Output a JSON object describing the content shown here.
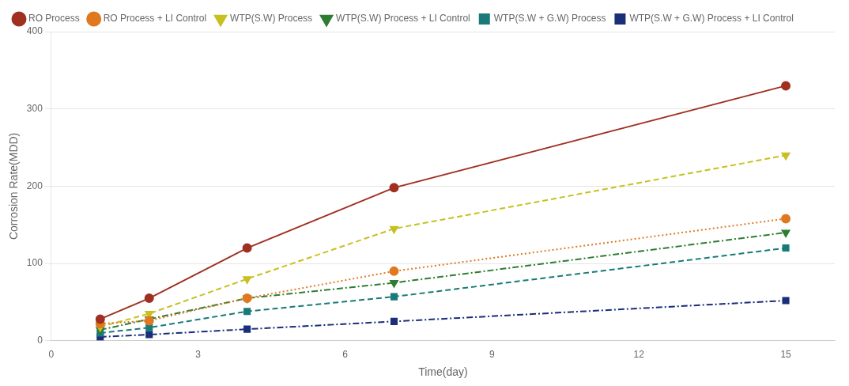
{
  "chart_data": {
    "type": "line",
    "x_label": "Time(day)",
    "y_label": "Corrosion Rate(MDD)",
    "x": [
      1,
      2,
      4,
      7,
      15
    ],
    "series": [
      {
        "name": "RO Process",
        "color": "#a03020",
        "marker": "circle",
        "line_style": "solid",
        "values": [
          28,
          55,
          120,
          198,
          330
        ]
      },
      {
        "name": "RO Process + LI Control",
        "color": "#e07820",
        "marker": "circle",
        "line_style": "dotted",
        "values": [
          22,
          26,
          55,
          90,
          158
        ]
      },
      {
        "name": "WTP(S.W) Process",
        "color": "#c8c020",
        "marker": "triangle_down",
        "line_style": "dashed",
        "values": [
          18,
          35,
          80,
          145,
          240
        ]
      },
      {
        "name": "WTP(S.W) Process + LI Control",
        "color": "#2e7d32",
        "marker": "triangle_down",
        "line_style": "dashdot",
        "values": [
          14,
          28,
          55,
          75,
          140
        ]
      },
      {
        "name": "WTP(S.W + G.W) Process",
        "color": "#1a7a7a",
        "marker": "square",
        "line_style": "dashed",
        "values": [
          10,
          17,
          38,
          57,
          120
        ]
      },
      {
        "name": "WTP(S.W + G.W) Process + LI Control",
        "color": "#1a2e7a",
        "marker": "square",
        "line_style": "dashdot",
        "values": [
          5,
          8,
          15,
          25,
          52
        ]
      }
    ],
    "xlim": [
      0,
      16
    ],
    "ylim": [
      0,
      400
    ],
    "xticks": [
      0,
      3,
      6,
      9,
      12,
      15
    ],
    "yticks": [
      0,
      100,
      200,
      300,
      400
    ],
    "grid": "y",
    "legend": "upper left"
  }
}
